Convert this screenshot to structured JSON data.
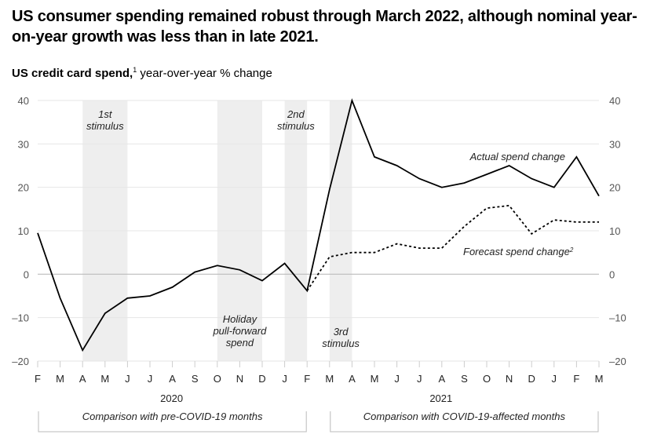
{
  "title": "US consumer spending remained robust through March 2022, although nominal year-on-year growth was less than in late 2021.",
  "subtitle": {
    "bold": "US credit card spend,",
    "footnote": "1",
    "rest": " year-over-year % change"
  },
  "chart_data": {
    "type": "line",
    "title": "US credit card spend, year-over-year % change",
    "xlabel": "",
    "ylabel": "",
    "ylim": [
      -20,
      40
    ],
    "yticks": [
      40,
      30,
      20,
      10,
      0,
      -10,
      -20
    ],
    "ytick_labels": [
      "40",
      "30",
      "20",
      "10",
      "0",
      "–10",
      "–20"
    ],
    "grid": true,
    "x": [
      "F",
      "M",
      "A",
      "M",
      "J",
      "J",
      "A",
      "S",
      "O",
      "N",
      "D",
      "J",
      "F",
      "M",
      "A",
      "M",
      "J",
      "J",
      "A",
      "S",
      "O",
      "N",
      "D",
      "J",
      "F",
      "M"
    ],
    "year_labels": [
      {
        "label": "2020",
        "center_index": 6
      },
      {
        "label": "2021",
        "center_index": 18
      }
    ],
    "series": [
      {
        "name": "Actual spend change",
        "style": "solid",
        "start_index": 0,
        "values": [
          9.5,
          -5.5,
          -17.5,
          -9,
          -5.5,
          -5,
          -3,
          0.5,
          2,
          1,
          -1.5,
          2.5,
          -3.8,
          19.5,
          40,
          27,
          25,
          22,
          20,
          21,
          23,
          25,
          22,
          20,
          27,
          18
        ]
      },
      {
        "name": "Forecast spend change",
        "footnote": "2",
        "style": "dotted",
        "start_index": 12,
        "values": [
          -3.8,
          4,
          5,
          5,
          7,
          6,
          6,
          11,
          15.2,
          15.8,
          9.3,
          12.5,
          12,
          12
        ]
      }
    ],
    "shaded_periods": [
      {
        "label_lines": [
          "1st",
          "stimulus"
        ],
        "from_index": 2,
        "to_index": 4,
        "label_position": "top"
      },
      {
        "label_lines": [
          "Holiday",
          "pull-forward",
          "spend"
        ],
        "from_index": 8,
        "to_index": 10,
        "label_position": "bottom"
      },
      {
        "label_lines": [
          "2nd",
          "stimulus"
        ],
        "from_index": 11,
        "to_index": 12,
        "label_position": "top"
      },
      {
        "label_lines": [
          "3rd",
          "stimulus"
        ],
        "from_index": 13,
        "to_index": 14,
        "label_position": "bottom"
      }
    ],
    "series_labels": [
      {
        "text": "Actual spend change",
        "series": 0
      },
      {
        "text": "Forecast spend change",
        "superscript": "2",
        "series": 1
      }
    ],
    "brackets": [
      {
        "label": "Comparison with pre-COVID-19 months",
        "from_index": 0,
        "to_index": 12
      },
      {
        "label": "Comparison with COVID-19-affected months",
        "from_index": 13,
        "to_index": 25
      }
    ],
    "colors": {
      "line": "#000000",
      "shade": "#eeeeee",
      "grid": "#e6e6e6",
      "zero_line": "#bbbbbb",
      "axis_text": "#555555"
    }
  }
}
